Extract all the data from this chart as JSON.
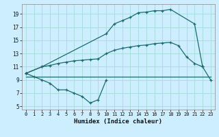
{
  "title": "",
  "xlabel": "Humidex (Indice chaleur)",
  "bg_color": "#cceeff",
  "grid_color": "#aadddd",
  "line_color": "#1a6b6b",
  "xlim": [
    -0.5,
    23.5
  ],
  "ylim": [
    4.5,
    20.5
  ],
  "xticks": [
    0,
    1,
    2,
    3,
    4,
    5,
    6,
    7,
    8,
    9,
    10,
    11,
    12,
    13,
    14,
    15,
    16,
    17,
    18,
    19,
    20,
    21,
    22,
    23
  ],
  "yticks": [
    5,
    7,
    9,
    11,
    13,
    15,
    17,
    19
  ],
  "series": {
    "upper": {
      "x": [
        0,
        2,
        10,
        11,
        12,
        13,
        14,
        15,
        16,
        17,
        18,
        21,
        22,
        23
      ],
      "y": [
        10,
        11,
        16,
        17.5,
        18,
        18.5,
        19.2,
        19.3,
        19.5,
        19.5,
        19.7,
        17.5,
        11,
        9
      ]
    },
    "middle": {
      "x": [
        0,
        2,
        3,
        4,
        5,
        6,
        7,
        8,
        9,
        10,
        11,
        12,
        13,
        14,
        15,
        16,
        17,
        18,
        19,
        20,
        21,
        22
      ],
      "y": [
        10,
        11,
        11.2,
        11.5,
        11.7,
        11.9,
        12.0,
        12.1,
        12.2,
        13,
        13.5,
        13.8,
        14.0,
        14.2,
        14.3,
        14.5,
        14.6,
        14.7,
        14.2,
        12.5,
        11.5,
        11
      ]
    },
    "flat": {
      "x": [
        0,
        23
      ],
      "y": [
        9.5,
        9.5
      ]
    },
    "dip": {
      "x": [
        0,
        1,
        2,
        3,
        4,
        5,
        6,
        7,
        8,
        9,
        10
      ],
      "y": [
        10,
        9.5,
        9,
        8.5,
        7.5,
        7.5,
        7,
        6.5,
        5.5,
        6,
        9
      ]
    }
  }
}
